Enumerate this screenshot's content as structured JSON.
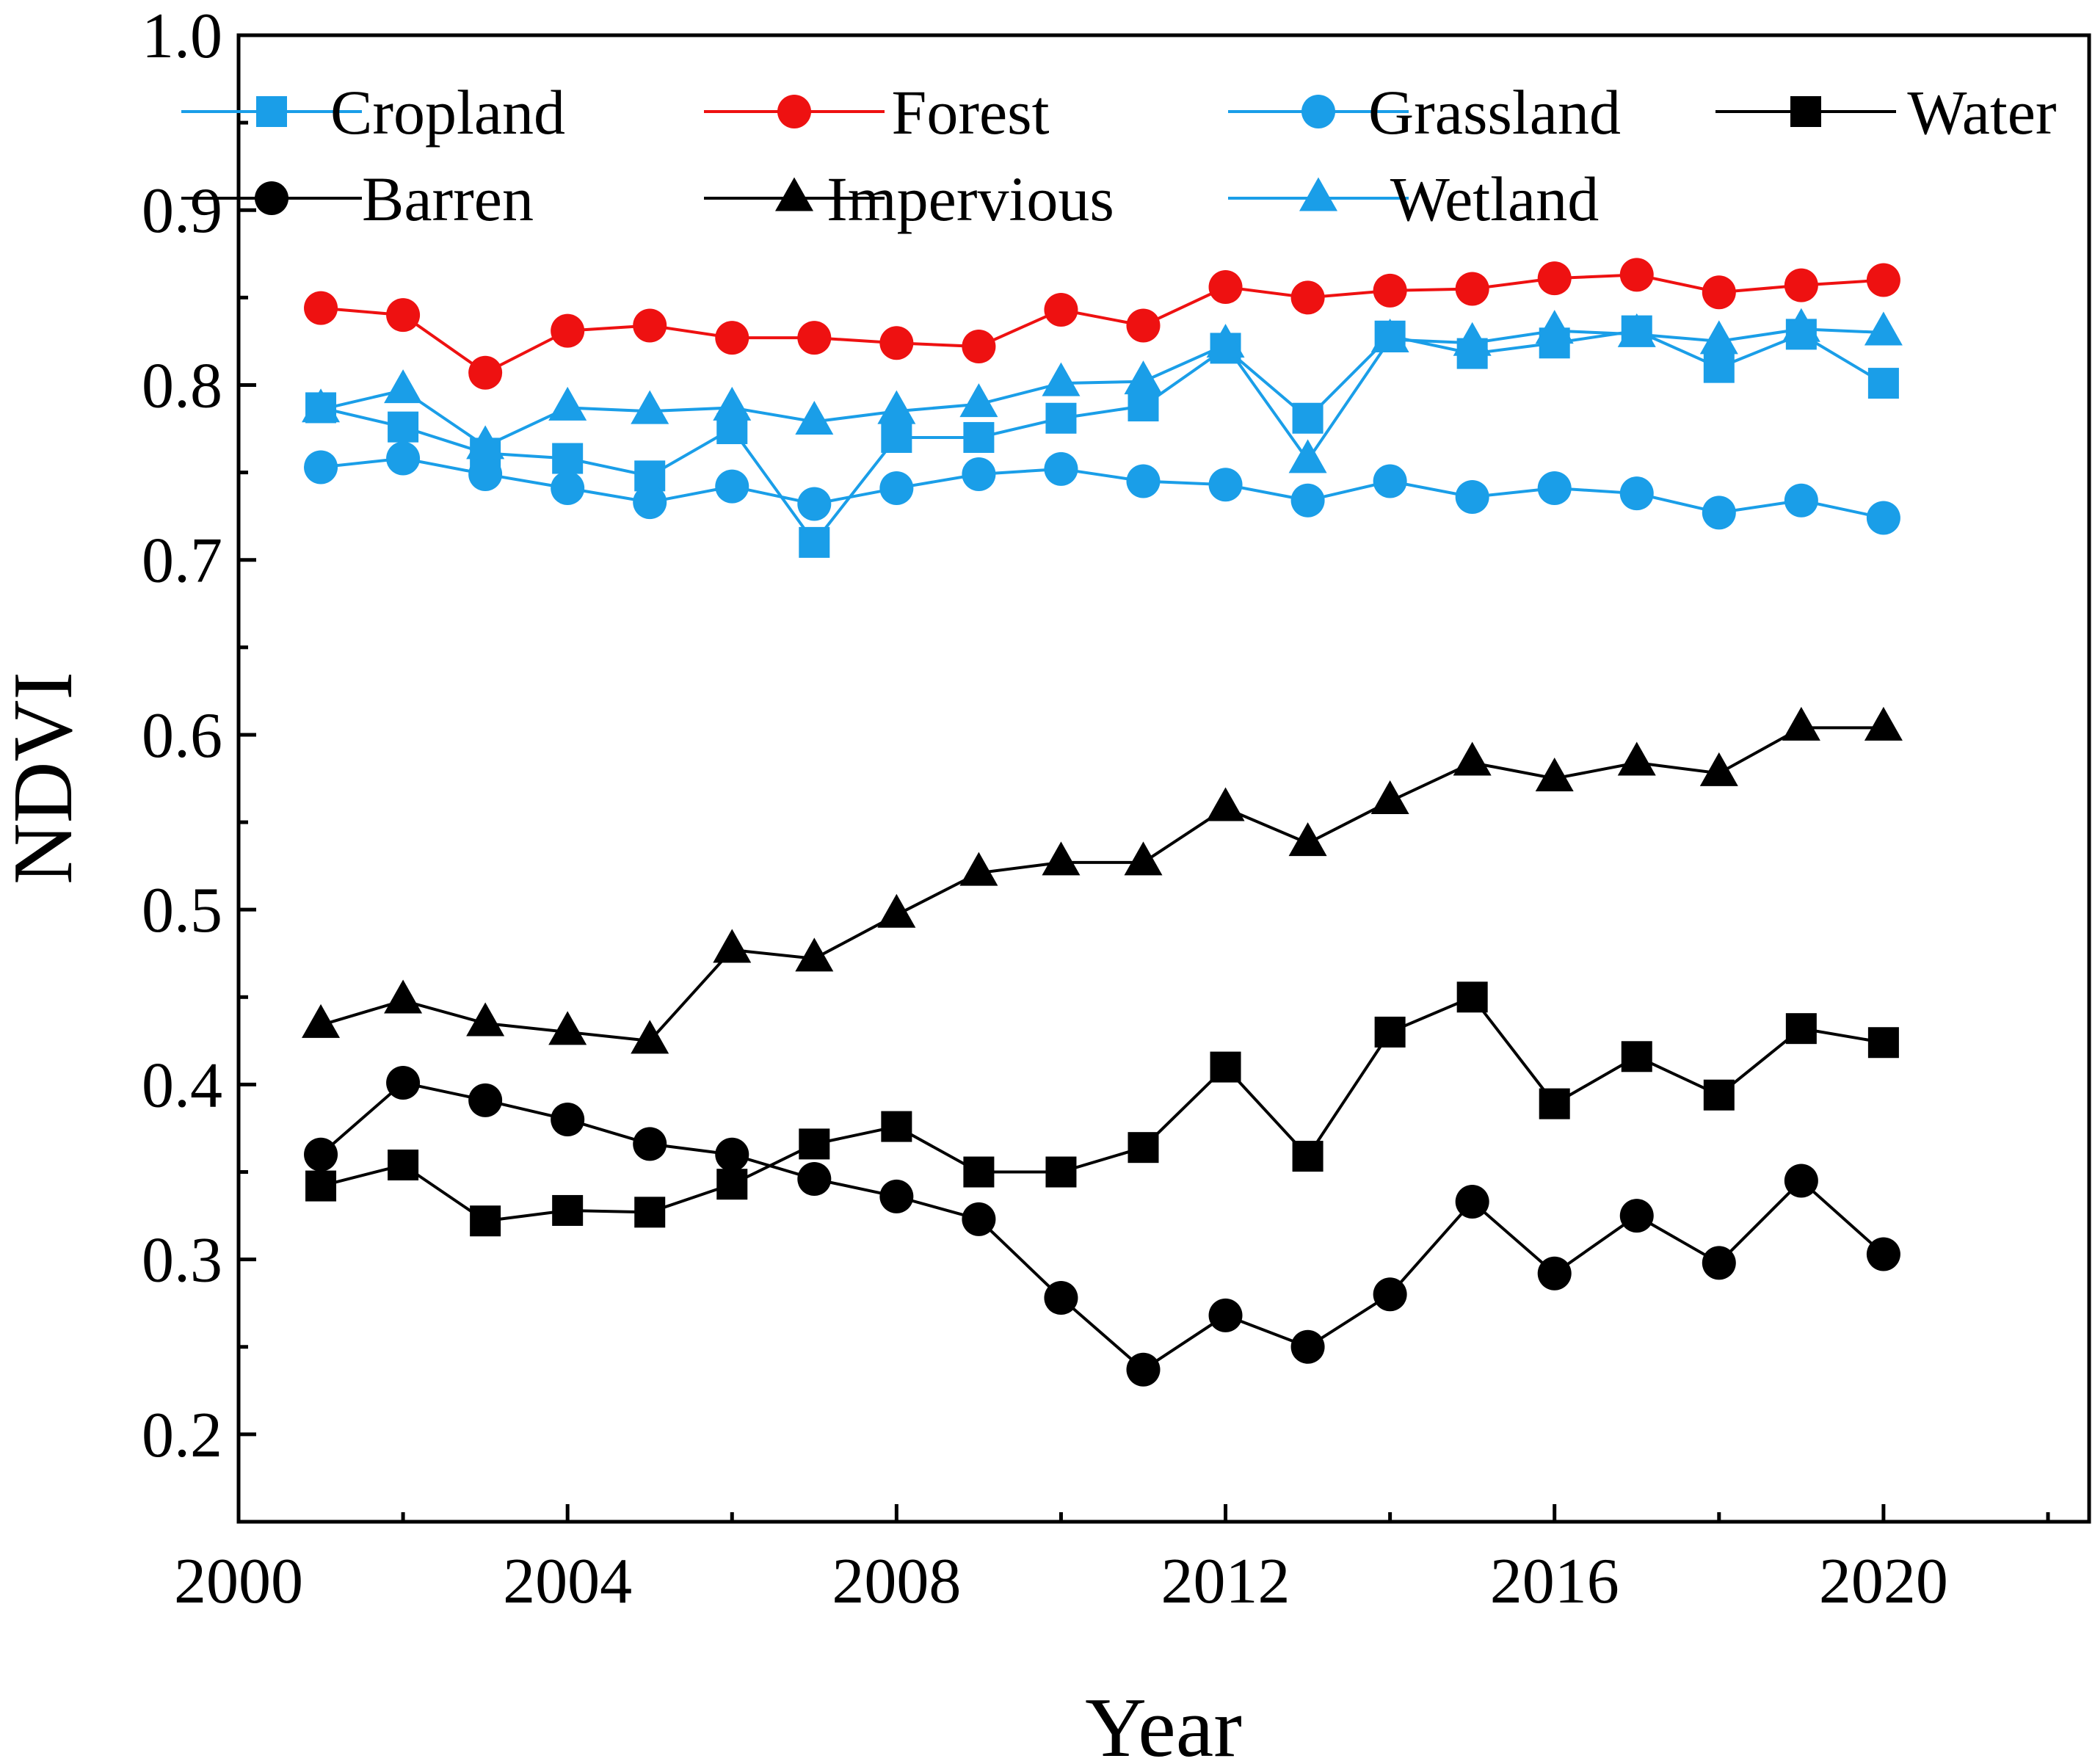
{
  "chart_data": {
    "type": "line",
    "xlabel": "Year",
    "ylabel": "NDVI",
    "xlim": [
      2000,
      2022.5
    ],
    "ylim": [
      0.15,
      1.0
    ],
    "xticks": [
      2000,
      2004,
      2008,
      2012,
      2016,
      2020
    ],
    "xtick_labels": [
      "2000",
      "2004",
      "2008",
      "2012",
      "2016",
      "2020"
    ],
    "yticks": [
      0.2,
      0.3,
      0.4,
      0.5,
      0.6,
      0.7,
      0.8,
      0.9,
      1.0
    ],
    "ytick_labels": [
      "0.2",
      "0.3",
      "0.4",
      "0.5",
      "0.6",
      "0.7",
      "0.8",
      "0.9",
      "1.0"
    ],
    "legend_position": "top",
    "x": [
      2001,
      2002,
      2003,
      2004,
      2005,
      2006,
      2007,
      2008,
      2009,
      2010,
      2011,
      2012,
      2013,
      2014,
      2015,
      2016,
      2017,
      2018,
      2019,
      2020
    ],
    "series": [
      {
        "name": "Cropland",
        "color": "#1a9ee8",
        "marker": "square",
        "values": [
          0.787,
          0.776,
          0.761,
          0.758,
          0.748,
          0.775,
          0.71,
          0.77,
          0.77,
          0.781,
          0.788,
          0.821,
          0.781,
          0.828,
          0.818,
          0.824,
          0.831,
          0.81,
          0.829,
          0.801
        ]
      },
      {
        "name": "Forest",
        "color": "#ee1111",
        "marker": "circle",
        "values": [
          0.844,
          0.84,
          0.807,
          0.831,
          0.834,
          0.827,
          0.827,
          0.824,
          0.822,
          0.843,
          0.834,
          0.856,
          0.85,
          0.854,
          0.855,
          0.861,
          0.863,
          0.853,
          0.857,
          0.86
        ]
      },
      {
        "name": "Grassland",
        "color": "#1a9ee8",
        "marker": "circle",
        "values": [
          0.753,
          0.758,
          0.749,
          0.741,
          0.733,
          0.742,
          0.732,
          0.741,
          0.749,
          0.752,
          0.745,
          0.743,
          0.734,
          0.745,
          0.736,
          0.741,
          0.738,
          0.727,
          0.734,
          0.724
        ]
      },
      {
        "name": "Water",
        "color": "#000000",
        "marker": "square",
        "values": [
          0.342,
          0.354,
          0.322,
          0.328,
          0.327,
          0.343,
          0.366,
          0.376,
          0.35,
          0.35,
          0.364,
          0.41,
          0.359,
          0.43,
          0.45,
          0.389,
          0.416,
          0.394,
          0.432,
          0.424
        ]
      },
      {
        "name": "Barren",
        "color": "#000000",
        "marker": "circle",
        "values": [
          0.36,
          0.401,
          0.391,
          0.38,
          0.366,
          0.36,
          0.346,
          0.336,
          0.323,
          0.278,
          0.237,
          0.268,
          0.25,
          0.28,
          0.333,
          0.292,
          0.325,
          0.298,
          0.345,
          0.303
        ]
      },
      {
        "name": "Impervious",
        "color": "#000000",
        "marker": "triangle",
        "values": [
          0.434,
          0.448,
          0.435,
          0.43,
          0.425,
          0.477,
          0.472,
          0.497,
          0.521,
          0.527,
          0.527,
          0.558,
          0.538,
          0.562,
          0.584,
          0.575,
          0.584,
          0.578,
          0.604,
          0.604
        ]
      },
      {
        "name": "Wetland",
        "color": "#1a9ee8",
        "marker": "triangle",
        "values": [
          0.786,
          0.797,
          0.765,
          0.787,
          0.785,
          0.787,
          0.779,
          0.785,
          0.789,
          0.801,
          0.802,
          0.823,
          0.757,
          0.826,
          0.824,
          0.831,
          0.829,
          0.825,
          0.832,
          0.83
        ]
      }
    ]
  }
}
